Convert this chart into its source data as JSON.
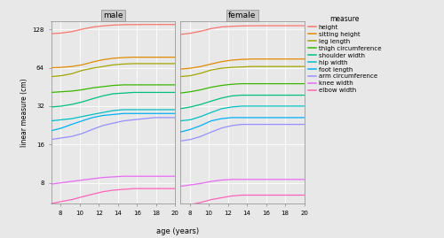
{
  "title_male": "male",
  "title_female": "female",
  "xlabel": "age (years)",
  "ylabel": "linear measure (cm)",
  "age_range": [
    7,
    20
  ],
  "yticks_log2": [
    8,
    16,
    32,
    64,
    128
  ],
  "xticks": [
    8,
    10,
    12,
    14,
    16,
    18,
    20
  ],
  "fig_bg": "#E8E8E8",
  "panel_bg": "#E8E8E8",
  "grid_color": "#FFFFFF",
  "title_bg": "#C8C8C8",
  "measures": [
    "height",
    "sitting height",
    "leg length",
    "thigh circumference",
    "shoulder width",
    "hip width",
    "foot length",
    "arm circumference",
    "knee width",
    "elbow width"
  ],
  "colors": [
    "#F8766D",
    "#E08B00",
    "#A3A500",
    "#39B600",
    "#00BF7D",
    "#00BFC4",
    "#00B0F6",
    "#9590FF",
    "#E76BF3",
    "#FF62BC"
  ],
  "male_data": {
    "height": [
      118.5,
      120.0,
      123.0,
      128.5,
      133.5,
      136.5,
      138.5,
      139.5,
      139.8,
      140.0,
      140.0,
      140.0,
      140.0
    ],
    "sitting height": [
      64.0,
      64.5,
      65.5,
      67.5,
      71.0,
      74.0,
      76.0,
      77.0,
      77.5,
      77.5,
      77.5,
      77.5,
      77.5
    ],
    "leg length": [
      54.5,
      55.5,
      57.5,
      61.0,
      63.5,
      65.5,
      67.5,
      68.5,
      69.0,
      69.0,
      69.0,
      69.0,
      69.0
    ],
    "thigh circumference": [
      41.0,
      41.5,
      42.0,
      43.0,
      44.5,
      45.5,
      46.5,
      47.0,
      47.0,
      47.0,
      47.0,
      47.0,
      47.0
    ],
    "shoulder width": [
      31.5,
      32.0,
      33.0,
      34.5,
      36.5,
      38.5,
      40.0,
      40.5,
      41.0,
      41.0,
      41.0,
      41.0,
      41.0
    ],
    "hip width": [
      24.5,
      25.0,
      25.5,
      26.5,
      27.5,
      28.5,
      29.5,
      30.0,
      30.0,
      30.0,
      30.0,
      30.0,
      30.0
    ],
    "foot length": [
      20.5,
      21.5,
      23.0,
      24.5,
      26.0,
      27.0,
      27.5,
      28.0,
      28.0,
      28.0,
      28.0,
      28.0,
      28.0
    ],
    "arm circumference": [
      17.5,
      18.0,
      18.5,
      19.5,
      21.0,
      22.5,
      23.5,
      24.5,
      25.0,
      25.5,
      26.0,
      26.0,
      26.0
    ],
    "knee width": [
      7.8,
      8.0,
      8.2,
      8.4,
      8.6,
      8.8,
      8.9,
      9.0,
      9.0,
      9.0,
      9.0,
      9.0,
      9.0
    ],
    "elbow width": [
      5.5,
      5.7,
      5.9,
      6.2,
      6.5,
      6.8,
      7.0,
      7.1,
      7.2,
      7.2,
      7.2,
      7.2,
      7.2
    ]
  },
  "female_data": {
    "height": [
      117.0,
      119.5,
      124.0,
      130.0,
      134.0,
      135.5,
      136.5,
      136.8,
      137.0,
      137.0,
      137.0,
      137.0,
      137.0
    ],
    "sitting height": [
      62.5,
      63.5,
      65.5,
      68.5,
      71.5,
      73.5,
      74.5,
      75.0,
      75.0,
      75.0,
      75.0,
      75.0,
      75.0
    ],
    "leg length": [
      54.5,
      55.5,
      58.0,
      61.5,
      63.5,
      64.5,
      65.0,
      65.5,
      65.5,
      65.5,
      65.5,
      65.5,
      65.5
    ],
    "thigh circumference": [
      40.5,
      41.5,
      43.0,
      45.0,
      46.5,
      47.5,
      48.0,
      48.0,
      48.0,
      48.0,
      48.0,
      48.0,
      48.0
    ],
    "shoulder width": [
      30.5,
      31.5,
      33.0,
      35.0,
      37.0,
      38.5,
      39.0,
      39.0,
      39.0,
      39.0,
      39.0,
      39.0,
      39.0
    ],
    "hip width": [
      24.5,
      25.0,
      26.5,
      28.5,
      30.5,
      31.5,
      32.0,
      32.0,
      32.0,
      32.0,
      32.0,
      32.0,
      32.0
    ],
    "foot length": [
      20.0,
      21.0,
      22.5,
      24.5,
      25.5,
      26.0,
      26.0,
      26.0,
      26.0,
      26.0,
      26.0,
      26.0,
      26.0
    ],
    "arm circumference": [
      17.0,
      17.5,
      18.5,
      20.0,
      21.5,
      22.5,
      23.0,
      23.0,
      23.0,
      23.0,
      23.0,
      23.0,
      23.0
    ],
    "knee width": [
      7.5,
      7.7,
      7.9,
      8.2,
      8.4,
      8.5,
      8.5,
      8.5,
      8.5,
      8.5,
      8.5,
      8.5,
      8.5
    ],
    "elbow width": [
      5.2,
      5.4,
      5.6,
      5.9,
      6.1,
      6.3,
      6.4,
      6.4,
      6.4,
      6.4,
      6.4,
      6.4,
      6.4
    ]
  }
}
